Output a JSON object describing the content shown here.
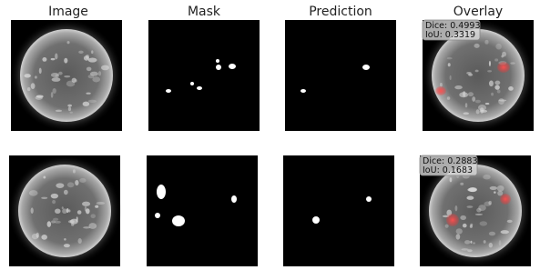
{
  "titles": [
    "Image",
    "Mask",
    "Prediction",
    "Overlay"
  ],
  "rows": [
    {
      "annotation": [
        "Dice: 0.4993",
        "IoU: 0.3319"
      ]
    },
    {
      "annotation": [
        "Dice: 0.2883",
        "IoU: 0.1683"
      ]
    }
  ]
}
